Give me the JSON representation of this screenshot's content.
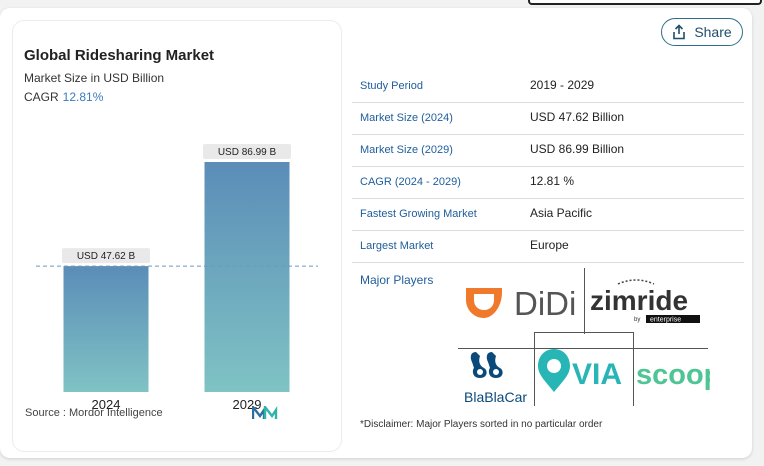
{
  "share": {
    "label": "Share"
  },
  "chart": {
    "title": "Global Ridesharing Market",
    "subtitle": "Market Size in USD Billion",
    "cagr_label": "CAGR",
    "cagr_value": "12.81%",
    "source": "Source :  Mordor Intelligence"
  },
  "chart_data": {
    "type": "bar",
    "categories": [
      "2024",
      "2029"
    ],
    "values": [
      47.62,
      86.99
    ],
    "data_labels": [
      "USD 47.62 B",
      "USD 86.99 B"
    ],
    "title": "Global Ridesharing Market",
    "subtitle": "Market Size in USD Billion",
    "xlabel": "",
    "ylabel": "",
    "ylim": [
      0,
      90
    ],
    "grid": false,
    "colors": [
      "#5b8db8",
      "#7fc3c4"
    ]
  },
  "table": {
    "rows": [
      {
        "key": "Study Period",
        "value": "2019 - 2029"
      },
      {
        "key": "Market Size (2024)",
        "value": "USD 47.62 Billion"
      },
      {
        "key": "Market Size (2029)",
        "value": "USD 86.99 Billion"
      },
      {
        "key": "CAGR (2024 - 2029)",
        "value": "12.81 %"
      },
      {
        "key": "Fastest Growing Market",
        "value": "Asia Pacific"
      },
      {
        "key": "Largest Market",
        "value": "Europe"
      }
    ]
  },
  "players": {
    "label": "Major Players",
    "didi": "DiDi",
    "zimride": "zimride",
    "zimride_by": "by",
    "zimride_enterprise": "enterprise",
    "blablacar": "BlaBlaCar",
    "via": "VIA",
    "scoop": "scoop"
  },
  "disclaimer": "*Disclaimer: Major Players sorted in no particular order",
  "colors": {
    "accent": "#1f5d9b",
    "didi_orange": "#f07a2c",
    "blablacar_blue": "#0a4a7a",
    "via_teal": "#28b5b5",
    "scoop_green": "#4fc494"
  }
}
